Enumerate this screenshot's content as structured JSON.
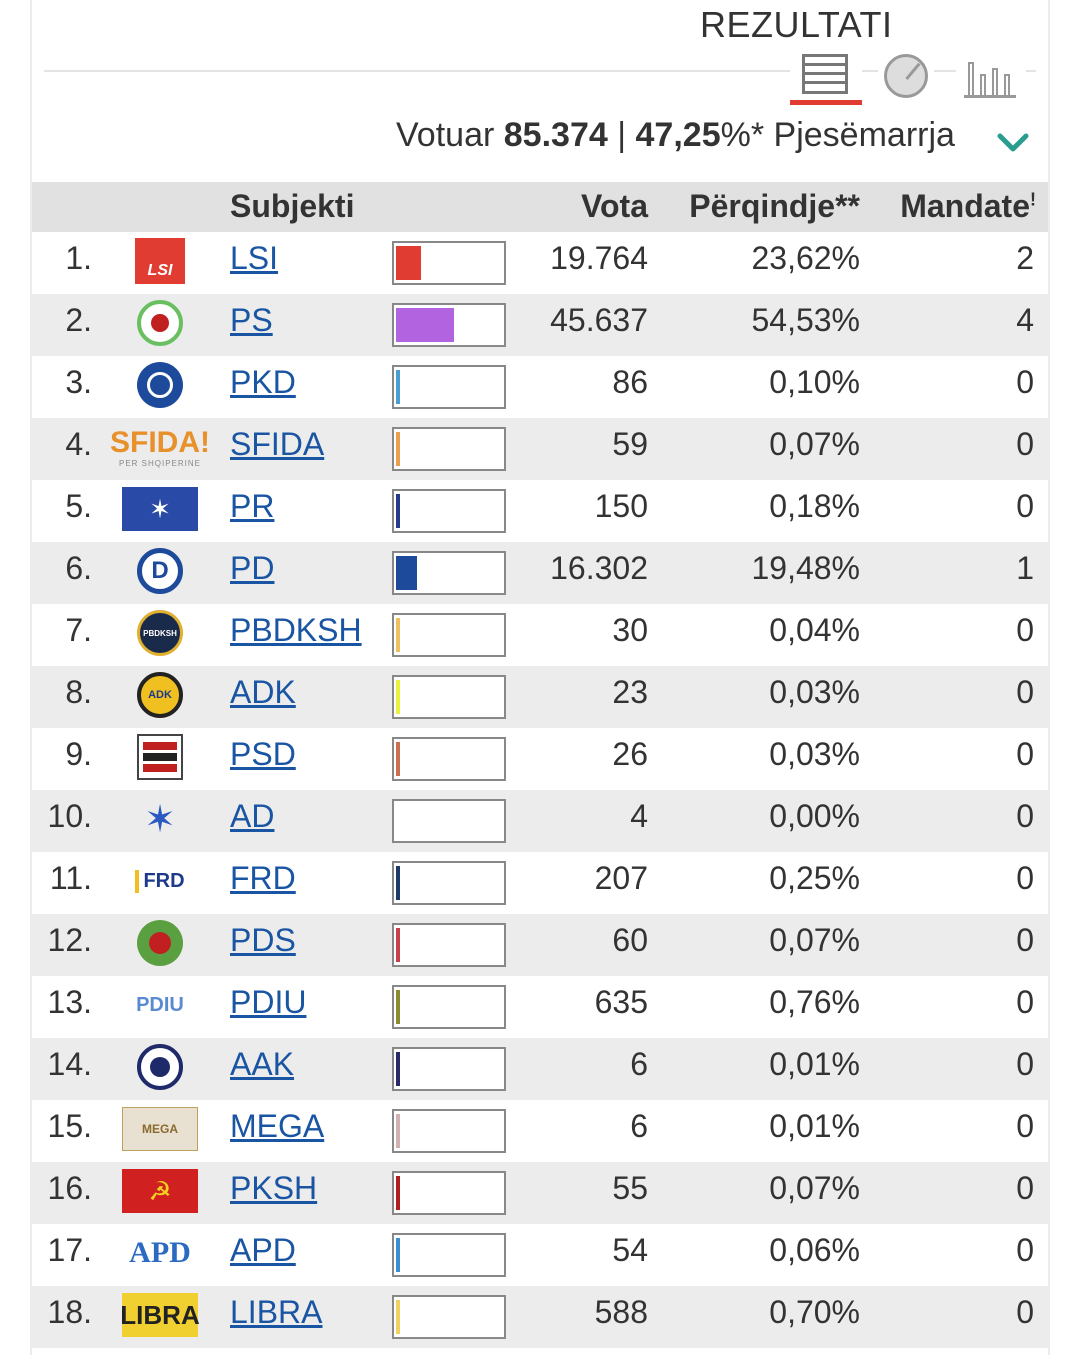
{
  "header": {
    "title": "REZULTATI"
  },
  "summary": {
    "voted_label": "Votuar",
    "voted_value": "85.374",
    "separator": "|",
    "turnout_value": "47,25",
    "turnout_suffix": "%*",
    "turnout_label": "Pjesëmarrja"
  },
  "table": {
    "columns": {
      "subject": "Subjekti",
      "votes": "Vota",
      "percent": "Përqindje**",
      "seats": "Mandate",
      "seats_mark": "!"
    },
    "rows": [
      {
        "rank": "1.",
        "party": "LSI",
        "logo": "lsi-logo",
        "votes": "19.764",
        "percent": "23,62%",
        "seats": "2",
        "share": 23.62,
        "color": "#e03c31"
      },
      {
        "rank": "2.",
        "party": "PS",
        "logo": "ps-logo",
        "votes": "45.637",
        "percent": "54,53%",
        "seats": "4",
        "share": 54.53,
        "color": "#b264e0"
      },
      {
        "rank": "3.",
        "party": "PKD",
        "logo": "pkd-logo",
        "votes": "86",
        "percent": "0,10%",
        "seats": "0",
        "share": 0.1,
        "color": "#4a9ed0"
      },
      {
        "rank": "4.",
        "party": "SFIDA",
        "logo": "sfida-logo",
        "votes": "59",
        "percent": "0,07%",
        "seats": "0",
        "share": 0.07,
        "color": "#e8a050"
      },
      {
        "rank": "5.",
        "party": "PR",
        "logo": "pr-logo",
        "votes": "150",
        "percent": "0,18%",
        "seats": "0",
        "share": 0.18,
        "color": "#2a3a8a"
      },
      {
        "rank": "6.",
        "party": "PD",
        "logo": "pd-logo",
        "votes": "16.302",
        "percent": "19,48%",
        "seats": "1",
        "share": 19.48,
        "color": "#1e4a9c"
      },
      {
        "rank": "7.",
        "party": "PBDKSH",
        "logo": "pbdksh-logo",
        "votes": "30",
        "percent": "0,04%",
        "seats": "0",
        "share": 0.04,
        "color": "#f0c060"
      },
      {
        "rank": "8.",
        "party": "ADK",
        "logo": "adk-logo",
        "votes": "23",
        "percent": "0,03%",
        "seats": "0",
        "share": 0.03,
        "color": "#e8f040"
      },
      {
        "rank": "9.",
        "party": "PSD",
        "logo": "psd-logo",
        "votes": "26",
        "percent": "0,03%",
        "seats": "0",
        "share": 0.03,
        "color": "#c87050"
      },
      {
        "rank": "10.",
        "party": "AD",
        "logo": "ad-logo",
        "votes": "4",
        "percent": "0,00%",
        "seats": "0",
        "share": 0.0,
        "color": "#cccccc"
      },
      {
        "rank": "11.",
        "party": "FRD",
        "logo": "frd-logo",
        "votes": "207",
        "percent": "0,25%",
        "seats": "0",
        "share": 0.25,
        "color": "#1e3a6a"
      },
      {
        "rank": "12.",
        "party": "PDS",
        "logo": "pds-logo",
        "votes": "60",
        "percent": "0,07%",
        "seats": "0",
        "share": 0.07,
        "color": "#c84050"
      },
      {
        "rank": "13.",
        "party": "PDIU",
        "logo": "pdiu-logo",
        "votes": "635",
        "percent": "0,76%",
        "seats": "0",
        "share": 0.76,
        "color": "#8a8a30"
      },
      {
        "rank": "14.",
        "party": "AAK",
        "logo": "aak-logo",
        "votes": "6",
        "percent": "0,01%",
        "seats": "0",
        "share": 0.01,
        "color": "#2a2a6a"
      },
      {
        "rank": "15.",
        "party": "MEGA",
        "logo": "mega-logo",
        "votes": "6",
        "percent": "0,01%",
        "seats": "0",
        "share": 0.01,
        "color": "#d0b0b0"
      },
      {
        "rank": "16.",
        "party": "PKSH",
        "logo": "pksh-logo",
        "votes": "55",
        "percent": "0,07%",
        "seats": "0",
        "share": 0.07,
        "color": "#b02020"
      },
      {
        "rank": "17.",
        "party": "APD",
        "logo": "apd-logo",
        "votes": "54",
        "percent": "0,06%",
        "seats": "0",
        "share": 0.06,
        "color": "#3a90d0"
      },
      {
        "rank": "18.",
        "party": "LIBRA",
        "logo": "libra-logo",
        "votes": "588",
        "percent": "0,70%",
        "seats": "0",
        "share": 0.7,
        "color": "#f0d060"
      }
    ]
  },
  "logo_text": {
    "lsi": "LSI",
    "sfida": "SFIDA!",
    "sfida_sub": "PER SHQIPERINE",
    "pd": "D",
    "pbdksh": "PBDKSH",
    "adk": "ADK",
    "frd": "FRD",
    "pdiu": "PDIU",
    "mega": "MEGA",
    "apd": "APD",
    "libra": "LIBRA"
  },
  "colors": {
    "accent": "#e03c31",
    "link": "#1a55a3",
    "chevron": "#2a9d8f"
  }
}
